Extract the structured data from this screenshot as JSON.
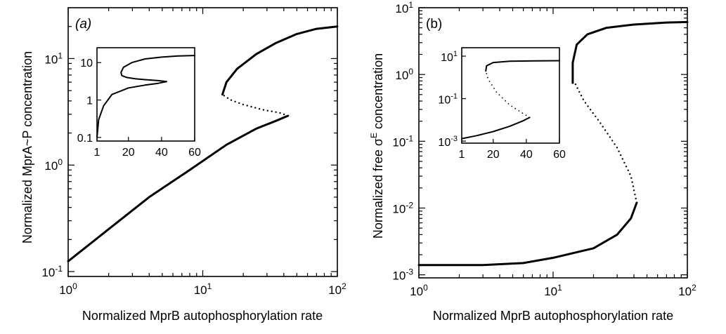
{
  "chart_data": [
    {
      "type": "line",
      "panel_label": "(a)",
      "xlabel": "Normalized MprB autophosphorylation rate",
      "ylabel": "Normalized MprA~P concentration",
      "xscale": "log",
      "yscale": "log",
      "xlim": [
        1,
        100
      ],
      "ylim": [
        0.09,
        30
      ],
      "x_ticks": [
        {
          "value": 1,
          "base": "10",
          "exp": "0"
        },
        {
          "value": 10,
          "base": "10",
          "exp": "1"
        },
        {
          "value": 100,
          "base": "10",
          "exp": "2"
        }
      ],
      "y_ticks": [
        {
          "value": 0.1,
          "base": "10",
          "exp": "-1"
        },
        {
          "value": 1,
          "base": "10",
          "exp": "0"
        },
        {
          "value": 10,
          "base": "10",
          "exp": "1"
        }
      ],
      "series": [
        {
          "style": "solid",
          "points": [
            [
              1,
              0.125
            ],
            [
              2,
              0.25
            ],
            [
              4,
              0.5
            ],
            [
              8,
              0.9
            ],
            [
              15,
              1.55
            ],
            [
              25,
              2.2
            ],
            [
              35,
              2.6
            ],
            [
              43,
              2.9
            ]
          ]
        },
        {
          "style": "dotted",
          "points": [
            [
              43,
              2.9
            ],
            [
              37,
              3.1
            ],
            [
              28,
              3.3
            ],
            [
              20,
              3.7
            ],
            [
              16,
              4.1
            ],
            [
              14,
              4.6
            ]
          ]
        },
        {
          "style": "solid",
          "points": [
            [
              14,
              4.6
            ],
            [
              15,
              6
            ],
            [
              18,
              8
            ],
            [
              25,
              11
            ],
            [
              35,
              14
            ],
            [
              50,
              17
            ],
            [
              70,
              19
            ],
            [
              100,
              20
            ]
          ]
        }
      ],
      "inset": {
        "xscale": "linear",
        "yscale": "log",
        "xlim": [
          1,
          60
        ],
        "ylim": [
          0.08,
          25
        ],
        "x_ticks": [
          {
            "value": 1,
            "label": "1"
          },
          {
            "value": 20,
            "label": "20"
          },
          {
            "value": 40,
            "label": "40"
          },
          {
            "value": 60,
            "label": "60"
          }
        ],
        "y_ticks": [
          {
            "value": 0.1,
            "label": "0.1"
          },
          {
            "value": 1,
            "label": "1"
          },
          {
            "value": 10,
            "label": "10"
          }
        ],
        "series": [
          {
            "style": "solid",
            "points": [
              [
                1,
                0.1
              ],
              [
                2,
                0.3
              ],
              [
                5,
                0.7
              ],
              [
                10,
                1.4
              ],
              [
                20,
                2.1
              ],
              [
                30,
                2.5
              ],
              [
                38,
                2.8
              ],
              [
                43,
                3.1
              ]
            ]
          },
          {
            "style": "solid",
            "points": [
              [
                43,
                3.1
              ],
              [
                38,
                3.3
              ],
              [
                30,
                3.5
              ],
              [
                24,
                3.7
              ],
              [
                19,
                4
              ],
              [
                16,
                4.5
              ],
              [
                15.5,
                5.5
              ],
              [
                17,
                7.5
              ],
              [
                22,
                10
              ],
              [
                30,
                12.5
              ],
              [
                40,
                14
              ],
              [
                50,
                15
              ],
              [
                60,
                15.5
              ]
            ]
          }
        ]
      }
    },
    {
      "type": "line",
      "panel_label": "(b)",
      "xlabel": "Normalized MprB autophosphorylation rate",
      "ylabel": "Normalized free σE concentration",
      "ylabel_main": "Normalized free σ",
      "ylabel_sup": "E",
      "ylabel_tail": " concentration",
      "xscale": "log",
      "yscale": "log",
      "xlim": [
        1,
        100
      ],
      "ylim": [
        0.0009,
        10
      ],
      "x_ticks": [
        {
          "value": 1,
          "base": "10",
          "exp": "0"
        },
        {
          "value": 10,
          "base": "10",
          "exp": "1"
        },
        {
          "value": 100,
          "base": "10",
          "exp": "2"
        }
      ],
      "y_ticks": [
        {
          "value": 0.001,
          "base": "10",
          "exp": "-3"
        },
        {
          "value": 0.01,
          "base": "10",
          "exp": "-2"
        },
        {
          "value": 0.1,
          "base": "10",
          "exp": "-1"
        },
        {
          "value": 1,
          "base": "10",
          "exp": "0"
        },
        {
          "value": 10,
          "base": "10",
          "exp": "1"
        }
      ],
      "series": [
        {
          "style": "solid",
          "points": [
            [
              1,
              0.0014
            ],
            [
              3,
              0.0014
            ],
            [
              6,
              0.0015
            ],
            [
              10,
              0.0018
            ],
            [
              20,
              0.0025
            ],
            [
              30,
              0.004
            ],
            [
              38,
              0.007
            ],
            [
              42,
              0.012
            ]
          ]
        },
        {
          "style": "dotted",
          "points": [
            [
              42,
              0.012
            ],
            [
              38,
              0.03
            ],
            [
              30,
              0.08
            ],
            [
              22,
              0.2
            ],
            [
              17,
              0.4
            ],
            [
              14.5,
              0.75
            ]
          ]
        },
        {
          "style": "solid",
          "points": [
            [
              14,
              0.75
            ],
            [
              14,
              1.5
            ],
            [
              15,
              2.8
            ],
            [
              18,
              4
            ],
            [
              25,
              5
            ],
            [
              40,
              5.6
            ],
            [
              70,
              6
            ],
            [
              100,
              6.1
            ]
          ]
        }
      ],
      "inset": {
        "xscale": "linear",
        "yscale": "log",
        "xlim": [
          1,
          60
        ],
        "ylim": [
          0.0008,
          25
        ],
        "x_ticks": [
          {
            "value": 1,
            "label": "1"
          },
          {
            "value": 20,
            "label": "20"
          },
          {
            "value": 40,
            "label": "40"
          },
          {
            "value": 60,
            "label": "60"
          }
        ],
        "y_ticks": [
          {
            "value": 0.001,
            "base": "10",
            "exp": "-3"
          },
          {
            "value": 0.1,
            "base": "10",
            "exp": "-1"
          },
          {
            "value": 10,
            "base": "10",
            "exp": "1"
          }
        ],
        "series": [
          {
            "style": "solid",
            "points": [
              [
                1,
                0.0013
              ],
              [
                10,
                0.0018
              ],
              [
                20,
                0.0028
              ],
              [
                30,
                0.005
              ],
              [
                38,
                0.009
              ],
              [
                42,
                0.013
              ]
            ]
          },
          {
            "style": "dotted",
            "points": [
              [
                42,
                0.013
              ],
              [
                38,
                0.02
              ],
              [
                30,
                0.05
              ],
              [
                22,
                0.2
              ],
              [
                17,
                0.8
              ],
              [
                15.5,
                2
              ]
            ]
          },
          {
            "style": "solid",
            "points": [
              [
                15.5,
                2
              ],
              [
                16,
                3.5
              ],
              [
                20,
                5
              ],
              [
                30,
                5.8
              ],
              [
                45,
                6
              ],
              [
                60,
                6.1
              ]
            ]
          }
        ]
      }
    }
  ]
}
